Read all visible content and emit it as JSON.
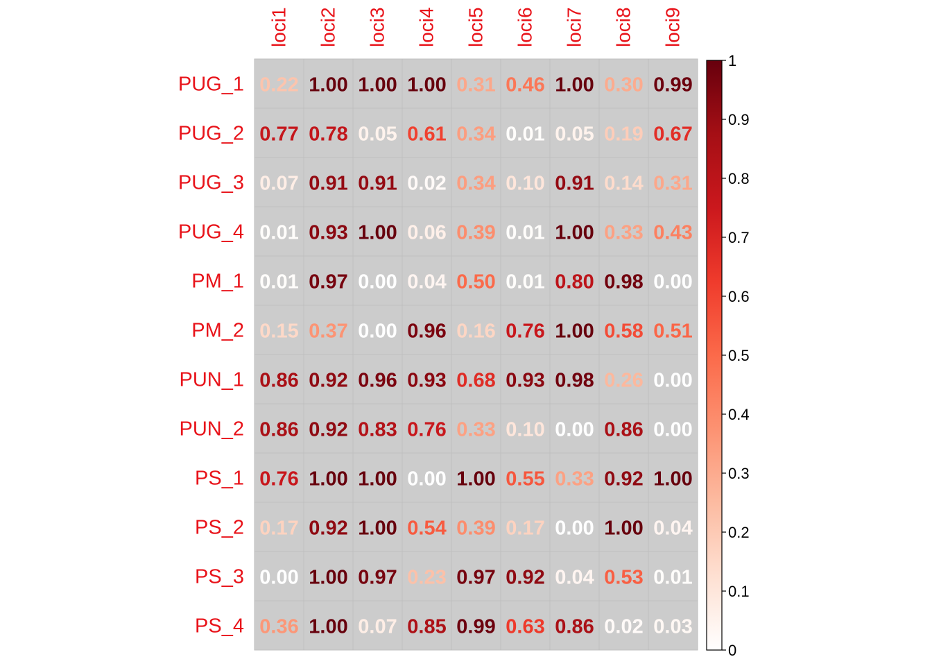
{
  "chart_data": {
    "type": "heatmap",
    "columns": [
      "loci1",
      "loci2",
      "loci3",
      "loci4",
      "loci5",
      "loci6",
      "loci7",
      "loci8",
      "loci9"
    ],
    "rows": [
      "PUG_1",
      "PUG_2",
      "PUG_3",
      "PUG_4",
      "PM_1",
      "PM_2",
      "PUN_1",
      "PUN_2",
      "PS_1",
      "PS_2",
      "PS_3",
      "PS_4"
    ],
    "values": [
      [
        0.22,
        1.0,
        1.0,
        1.0,
        0.31,
        0.46,
        1.0,
        0.3,
        0.99
      ],
      [
        0.77,
        0.78,
        0.05,
        0.61,
        0.34,
        0.01,
        0.05,
        0.19,
        0.67
      ],
      [
        0.07,
        0.91,
        0.91,
        0.02,
        0.34,
        0.1,
        0.91,
        0.14,
        0.31
      ],
      [
        0.01,
        0.93,
        1.0,
        0.06,
        0.39,
        0.01,
        1.0,
        0.33,
        0.43
      ],
      [
        0.01,
        0.97,
        0.0,
        0.04,
        0.5,
        0.01,
        0.8,
        0.98,
        0.0
      ],
      [
        0.15,
        0.37,
        0.0,
        0.96,
        0.16,
        0.76,
        1.0,
        0.58,
        0.51
      ],
      [
        0.86,
        0.92,
        0.96,
        0.93,
        0.68,
        0.93,
        0.98,
        0.26,
        0.0
      ],
      [
        0.86,
        0.92,
        0.83,
        0.76,
        0.33,
        0.1,
        0.0,
        0.86,
        0.0
      ],
      [
        0.76,
        1.0,
        1.0,
        0.0,
        1.0,
        0.55,
        0.33,
        0.92,
        1.0
      ],
      [
        0.17,
        0.92,
        1.0,
        0.54,
        0.39,
        0.17,
        0.0,
        1.0,
        0.04
      ],
      [
        0.0,
        1.0,
        0.97,
        0.23,
        0.97,
        0.92,
        0.04,
        0.53,
        0.01
      ],
      [
        0.36,
        1.0,
        0.07,
        0.85,
        0.99,
        0.63,
        0.86,
        0.02,
        0.03
      ]
    ],
    "value_format": "0.00",
    "colorbar": {
      "min": 0,
      "max": 1,
      "ticks": [
        "0",
        "0.1",
        "0.2",
        "0.3",
        "0.4",
        "0.5",
        "0.6",
        "0.7",
        "0.8",
        "0.9",
        "1"
      ],
      "tick_values": [
        0,
        0.1,
        0.2,
        0.3,
        0.4,
        0.5,
        0.6,
        0.7,
        0.8,
        0.9,
        1
      ]
    },
    "colors": {
      "cell_background": "#cccccc",
      "grid_line": "#bfbfbf",
      "label_color": "#e8131a",
      "colorscale": [
        "#ffffff",
        "#fee0d2",
        "#fcbba1",
        "#fc9272",
        "#fb6a4a",
        "#ef3b2c",
        "#cb181d",
        "#a50f15",
        "#67000d"
      ]
    },
    "title": "",
    "xlabel": "",
    "ylabel": "",
    "legend": "right"
  }
}
